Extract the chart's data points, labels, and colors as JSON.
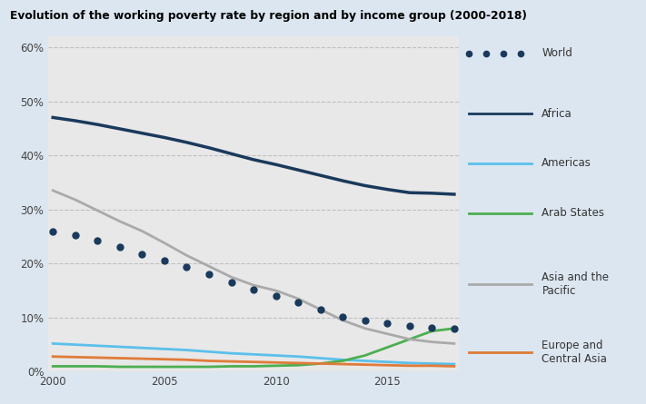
{
  "title": "Evolution of the working poverty rate by region and by income group (2000-2018)",
  "years": [
    2000,
    2001,
    2002,
    2003,
    2004,
    2005,
    2006,
    2007,
    2008,
    2009,
    2010,
    2011,
    2012,
    2013,
    2014,
    2015,
    2016,
    2017,
    2018
  ],
  "world": [
    26.0,
    25.2,
    24.2,
    23.0,
    21.8,
    20.6,
    19.3,
    18.0,
    16.5,
    15.2,
    14.0,
    12.8,
    11.5,
    10.2,
    9.5,
    9.0,
    8.5,
    8.2,
    8.0
  ],
  "africa": [
    47.0,
    46.4,
    45.7,
    44.9,
    44.1,
    43.3,
    42.4,
    41.4,
    40.3,
    39.2,
    38.3,
    37.3,
    36.3,
    35.3,
    34.4,
    33.7,
    33.1,
    33.0,
    32.8
  ],
  "americas": [
    5.2,
    5.0,
    4.8,
    4.6,
    4.4,
    4.2,
    4.0,
    3.7,
    3.4,
    3.2,
    3.0,
    2.8,
    2.5,
    2.2,
    2.0,
    1.8,
    1.6,
    1.5,
    1.4
  ],
  "arab_states": [
    1.0,
    1.0,
    1.0,
    0.9,
    0.9,
    0.9,
    0.9,
    0.9,
    1.0,
    1.0,
    1.1,
    1.2,
    1.5,
    2.0,
    3.0,
    4.5,
    6.0,
    7.5,
    8.0
  ],
  "asia_pacific": [
    33.5,
    31.8,
    29.8,
    27.8,
    26.0,
    23.8,
    21.5,
    19.5,
    17.5,
    16.0,
    15.0,
    13.5,
    11.5,
    9.5,
    8.0,
    7.0,
    6.0,
    5.5,
    5.2
  ],
  "europe_central_asia": [
    2.8,
    2.7,
    2.6,
    2.5,
    2.4,
    2.3,
    2.2,
    2.0,
    1.9,
    1.8,
    1.7,
    1.6,
    1.5,
    1.4,
    1.3,
    1.2,
    1.1,
    1.1,
    1.0
  ],
  "colors": {
    "world": "#1a3a5c",
    "africa": "#1a3a5c",
    "americas": "#5bc0eb",
    "arab_states": "#4caf50",
    "asia_pacific": "#aaaaaa",
    "europe_central_asia": "#e07b39"
  },
  "background_color": "#dce6f0",
  "plot_background": "#e8e8e8",
  "ylim": [
    0,
    62
  ],
  "yticks": [
    0,
    10,
    20,
    30,
    40,
    50,
    60
  ],
  "ytick_labels": [
    "0%",
    "10%",
    "20%",
    "30%",
    "40%",
    "50%",
    "60%"
  ],
  "xlim": [
    2000,
    2018
  ],
  "legend_items": [
    {
      "label": "World",
      "series": "world",
      "style": "dotted"
    },
    {
      "label": "Africa",
      "series": "africa",
      "style": "solid"
    },
    {
      "label": "Americas",
      "series": "americas",
      "style": "solid"
    },
    {
      "label": "Arab States",
      "series": "arab_states",
      "style": "solid"
    },
    {
      "label": "Asia and the\nPacific",
      "series": "asia_pacific",
      "style": "solid"
    },
    {
      "label": "Europe and\nCentral Asia",
      "series": "europe_central_asia",
      "style": "solid"
    }
  ]
}
